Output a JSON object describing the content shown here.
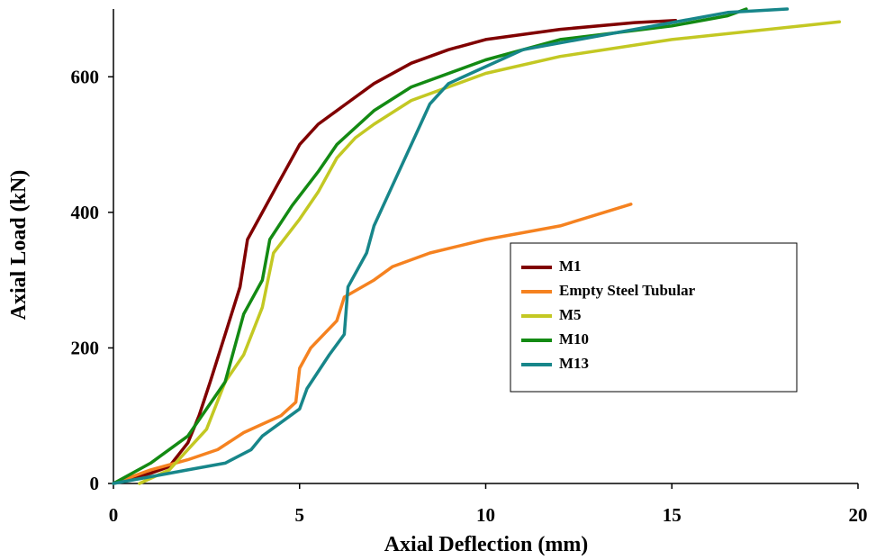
{
  "chart_data": {
    "type": "line",
    "xlabel": "Axial Deflection (mm)",
    "ylabel": "Axial Load (kN)",
    "xlim": [
      0,
      20
    ],
    "ylim": [
      0,
      700
    ],
    "xticks": [
      0,
      5,
      10,
      15,
      20
    ],
    "yticks": [
      0,
      200,
      400,
      600
    ],
    "grid": false,
    "legend_position": "center right",
    "series": [
      {
        "name": "M1",
        "color": "#800000",
        "x": [
          0,
          1,
          1.5,
          2,
          2.3,
          2.6,
          3,
          3.4,
          3.6,
          4,
          4.4,
          5,
          5.5,
          6,
          7,
          8,
          9,
          10,
          12,
          14,
          15.1
        ],
        "values": [
          0,
          15,
          25,
          60,
          100,
          150,
          220,
          290,
          360,
          400,
          440,
          500,
          530,
          550,
          590,
          620,
          640,
          655,
          670,
          680,
          683
        ]
      },
      {
        "name": "Empty Steel Tubular",
        "color": "#f58220",
        "x": [
          0,
          1,
          2,
          2.8,
          3.5,
          4.5,
          4.9,
          5,
          5.3,
          6,
          6.2,
          7,
          7.5,
          8.5,
          10,
          12,
          13.9
        ],
        "values": [
          0,
          20,
          35,
          50,
          75,
          100,
          120,
          170,
          200,
          240,
          275,
          300,
          320,
          340,
          360,
          380,
          412
        ]
      },
      {
        "name": "M5",
        "color": "#c3c823",
        "x": [
          0.7,
          1.5,
          2.5,
          3,
          3.5,
          4,
          4.3,
          5,
          5.5,
          6,
          6.5,
          7,
          8,
          10,
          12,
          15,
          19.5
        ],
        "values": [
          0,
          20,
          80,
          150,
          190,
          260,
          340,
          390,
          430,
          480,
          510,
          530,
          565,
          605,
          630,
          655,
          681
        ]
      },
      {
        "name": "M10",
        "color": "#138a13",
        "x": [
          0,
          1,
          2,
          2.5,
          3,
          3.5,
          4,
          4.2,
          4.8,
          5.5,
          6,
          7,
          8,
          10,
          12,
          15,
          16.5,
          17
        ],
        "values": [
          0,
          30,
          70,
          110,
          150,
          250,
          300,
          360,
          410,
          460,
          500,
          550,
          585,
          625,
          655,
          675,
          690,
          700
        ]
      },
      {
        "name": "M13",
        "color": "#17868a",
        "x": [
          0,
          1,
          2,
          3,
          3.7,
          4,
          5,
          5.2,
          5.8,
          6.2,
          6.3,
          6.8,
          7,
          7.5,
          8,
          8.5,
          9,
          10,
          11,
          13,
          15,
          16.5,
          18.1
        ],
        "values": [
          0,
          10,
          20,
          30,
          50,
          70,
          110,
          140,
          190,
          220,
          290,
          340,
          380,
          440,
          500,
          560,
          590,
          615,
          640,
          660,
          680,
          695,
          700
        ]
      }
    ]
  }
}
